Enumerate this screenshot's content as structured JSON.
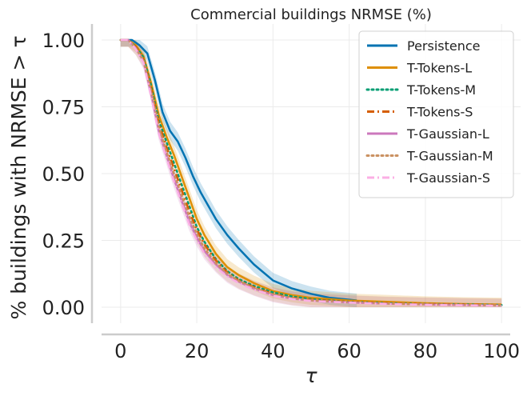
{
  "chart_data": {
    "type": "line",
    "title": "Commercial buildings NRMSE (%)",
    "xlabel": "τ",
    "ylabel": "% buildings with NRMSE  > τ",
    "xlim": [
      -5,
      105
    ],
    "ylim": [
      -0.06,
      1.06
    ],
    "xticks": [
      0,
      20,
      40,
      60,
      80,
      100
    ],
    "yticks": [
      0.0,
      0.25,
      0.5,
      0.75,
      1.0
    ],
    "xtick_labels": [
      "0",
      "20",
      "40",
      "60",
      "80",
      "100"
    ],
    "ytick_labels": [
      "0.00",
      "0.25",
      "0.50",
      "0.75",
      "1.00"
    ],
    "grid": true,
    "legend_position": "top-right",
    "series": [
      {
        "name": "Persistence",
        "color": "#0173b2",
        "dash": "solid",
        "band": true,
        "x": [
          0,
          3,
          5,
          7,
          9,
          11,
          13,
          15,
          17,
          19,
          21,
          23,
          25,
          28,
          31,
          35,
          40,
          45,
          50,
          55,
          62
        ],
        "y": [
          1.0,
          1.0,
          0.98,
          0.95,
          0.85,
          0.73,
          0.66,
          0.62,
          0.56,
          0.49,
          0.43,
          0.38,
          0.33,
          0.27,
          0.22,
          0.16,
          0.1,
          0.07,
          0.05,
          0.035,
          0.025
        ]
      },
      {
        "name": "T-Tokens-L",
        "color": "#de8f05",
        "dash": "solid",
        "band": true,
        "x": [
          0,
          2,
          4,
          6,
          8,
          10,
          12,
          14,
          16,
          18,
          20,
          22,
          25,
          28,
          31,
          35,
          40,
          45,
          50,
          60,
          70,
          80,
          90,
          100
        ],
        "y": [
          1.0,
          1.0,
          0.98,
          0.94,
          0.84,
          0.72,
          0.64,
          0.57,
          0.49,
          0.41,
          0.33,
          0.27,
          0.2,
          0.15,
          0.12,
          0.09,
          0.06,
          0.045,
          0.035,
          0.025,
          0.02,
          0.015,
          0.012,
          0.01
        ]
      },
      {
        "name": "T-Tokens-M",
        "color": "#029e73",
        "dash": "dotted",
        "band": false,
        "x": [
          0,
          2,
          4,
          6,
          8,
          10,
          12,
          14,
          16,
          18,
          20,
          22,
          25,
          28,
          31,
          35,
          40,
          45,
          50,
          60,
          70,
          80,
          90,
          100
        ],
        "y": [
          1.0,
          1.0,
          0.975,
          0.935,
          0.83,
          0.7,
          0.62,
          0.54,
          0.46,
          0.38,
          0.3,
          0.245,
          0.18,
          0.135,
          0.105,
          0.08,
          0.055,
          0.04,
          0.03,
          0.02,
          0.015,
          0.012,
          0.01,
          0.008
        ]
      },
      {
        "name": "T-Tokens-S",
        "color": "#d55e00",
        "dash": "dashdot",
        "band": false,
        "x": [
          0,
          2,
          4,
          6,
          8,
          10,
          12,
          14,
          16,
          18,
          20,
          22,
          25,
          28,
          31,
          35,
          40,
          45,
          50,
          60,
          70,
          80,
          90,
          100
        ],
        "y": [
          1.0,
          1.0,
          0.975,
          0.93,
          0.82,
          0.69,
          0.6,
          0.52,
          0.44,
          0.36,
          0.29,
          0.235,
          0.175,
          0.13,
          0.1,
          0.075,
          0.05,
          0.035,
          0.028,
          0.02,
          0.015,
          0.012,
          0.01,
          0.008
        ]
      },
      {
        "name": "T-Gaussian-L",
        "color": "#cc78bc",
        "dash": "solid",
        "band": true,
        "x": [
          0,
          2,
          4,
          6,
          8,
          10,
          12,
          14,
          16,
          18,
          20,
          22,
          25,
          28,
          31,
          35,
          40,
          45,
          50,
          60,
          70,
          80,
          90,
          100
        ],
        "y": [
          1.0,
          1.0,
          0.97,
          0.92,
          0.8,
          0.66,
          0.57,
          0.48,
          0.4,
          0.32,
          0.26,
          0.21,
          0.16,
          0.12,
          0.095,
          0.07,
          0.045,
          0.032,
          0.025,
          0.018,
          0.013,
          0.01,
          0.008,
          0.006
        ]
      },
      {
        "name": "T-Gaussian-M",
        "color": "#ca9161",
        "dash": "dotted",
        "band": true,
        "x": [
          0,
          2,
          4,
          6,
          8,
          10,
          12,
          14,
          16,
          18,
          20,
          22,
          25,
          28,
          31,
          35,
          40,
          45,
          50,
          60,
          70,
          80,
          90,
          100
        ],
        "y": [
          1.0,
          1.0,
          0.97,
          0.925,
          0.81,
          0.675,
          0.585,
          0.5,
          0.42,
          0.34,
          0.275,
          0.22,
          0.165,
          0.125,
          0.098,
          0.072,
          0.048,
          0.034,
          0.026,
          0.019,
          0.014,
          0.011,
          0.009,
          0.007
        ]
      },
      {
        "name": "T-Gaussian-S",
        "color": "#fbafe4",
        "dash": "dashdot",
        "band": false,
        "x": [
          0,
          2,
          4,
          6,
          8,
          10,
          12,
          14,
          16,
          18,
          20,
          22,
          25,
          28,
          31,
          35,
          40,
          45,
          50,
          60,
          70,
          80,
          90,
          100
        ],
        "y": [
          1.0,
          1.0,
          0.965,
          0.915,
          0.79,
          0.65,
          0.56,
          0.47,
          0.39,
          0.31,
          0.25,
          0.2,
          0.15,
          0.115,
          0.09,
          0.066,
          0.043,
          0.03,
          0.023,
          0.017,
          0.012,
          0.009,
          0.007,
          0.005
        ]
      }
    ]
  }
}
